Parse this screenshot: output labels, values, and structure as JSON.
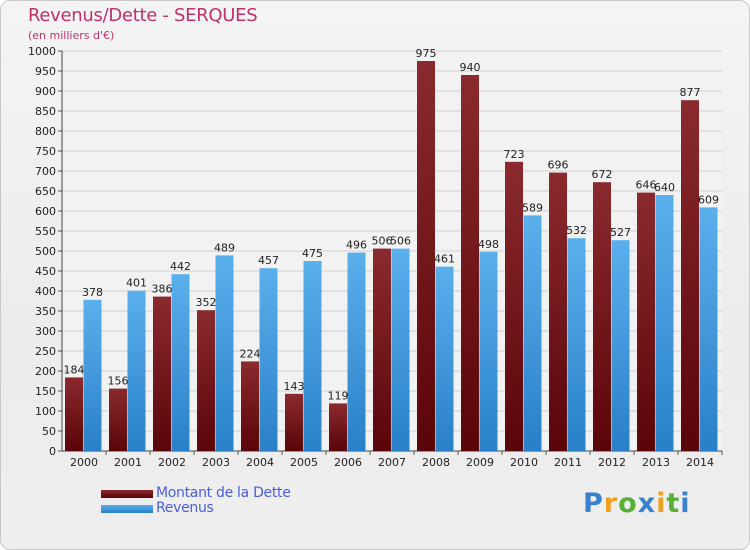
{
  "chart_data": {
    "type": "bar",
    "title": "Revenus/Dette - SERQUES",
    "subtitle": "(en milliers d'€)",
    "xlabel": "",
    "ylabel": "",
    "ylim": [
      0,
      1000
    ],
    "ytick_step": 50,
    "grid": true,
    "legend_position": "bottom-left",
    "categories": [
      "2000",
      "2001",
      "2002",
      "2003",
      "2004",
      "2005",
      "2006",
      "2007",
      "2008",
      "2009",
      "2010",
      "2011",
      "2012",
      "2013",
      "2014"
    ],
    "series": [
      {
        "name": "Montant de la Dette",
        "color": "#7a1a1e",
        "values": [
          184,
          156,
          386,
          352,
          224,
          143,
          119,
          506,
          975,
          940,
          723,
          696,
          672,
          646,
          877
        ]
      },
      {
        "name": "Revenus",
        "color": "#3b9ce0",
        "values": [
          378,
          401,
          442,
          489,
          457,
          475,
          496,
          506,
          461,
          498,
          589,
          532,
          527,
          640,
          609
        ]
      }
    ]
  },
  "logo": {
    "letters": [
      "P",
      "r",
      "o",
      "x",
      "i",
      "t",
      "i"
    ],
    "colors": [
      "#3a80d0",
      "#f0a020",
      "#58b038",
      "#3a80d0",
      "#f0a020",
      "#58b038",
      "#3a80d0"
    ]
  }
}
